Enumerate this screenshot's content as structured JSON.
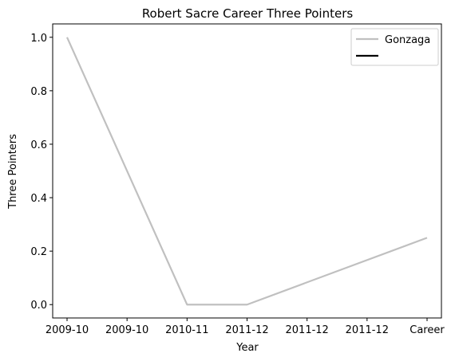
{
  "chart_data": {
    "type": "line",
    "title": "Robert Sacre Career Three Pointers",
    "xlabel": "Year",
    "ylabel": "Three Pointers",
    "categories": [
      "2009-10",
      "2009-10",
      "2010-11",
      "2011-12",
      "2011-12",
      "2011-12",
      "Career"
    ],
    "ylim": [
      -0.05,
      1.05
    ],
    "yticks": [
      "0.0",
      "0.2",
      "0.4",
      "0.6",
      "0.8",
      "1.0"
    ],
    "grid": false,
    "legend_position": "top-right",
    "series": [
      {
        "name": "Gonzaga",
        "color": "#c0c0c0",
        "points": [
          {
            "x": "2009-10",
            "y": 1.0
          },
          {
            "x": "2010-11",
            "y": 0.0
          },
          {
            "x": "2011-12",
            "y": 0.0
          },
          {
            "x": "Career",
            "y": 0.25
          }
        ]
      },
      {
        "name": "",
        "color": "#000000",
        "points": []
      }
    ]
  }
}
